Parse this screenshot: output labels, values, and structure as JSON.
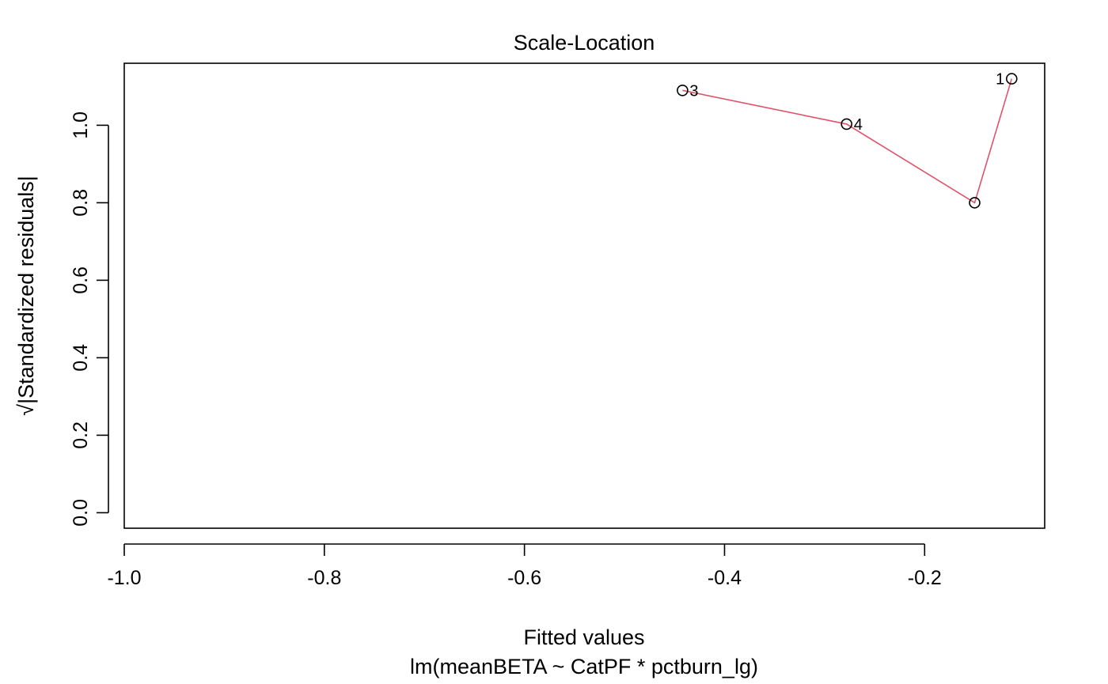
{
  "chart_data": {
    "type": "scatter",
    "title": "Scale-Location",
    "xlabel": "Fitted values",
    "subtitle": "lm(meanBETA ~ CatPF * pctburn_lg)",
    "ylabel": "√|Standardized residuals|",
    "xlim": [
      -1.0,
      -0.08
    ],
    "ylim": [
      -0.04,
      1.16
    ],
    "x_ticks": [
      -1.0,
      -0.8,
      -0.6,
      -0.4,
      -0.2
    ],
    "x_tick_labels": [
      "-1.0",
      "-0.8",
      "-0.6",
      "-0.4",
      "-0.2"
    ],
    "y_ticks": [
      0.0,
      0.2,
      0.4,
      0.6,
      0.8,
      1.0
    ],
    "y_tick_labels": [
      "0.0",
      "0.2",
      "0.4",
      "0.6",
      "0.8",
      "1.0"
    ],
    "grid": false,
    "points": [
      {
        "label": "3",
        "x": -0.442,
        "y": 1.09,
        "label_side": "right"
      },
      {
        "label": "4",
        "x": -0.278,
        "y": 1.003,
        "label_side": "right"
      },
      {
        "label": "",
        "x": -0.15,
        "y": 0.8,
        "label_side": "right"
      },
      {
        "label": "1",
        "x": -0.113,
        "y": 1.12,
        "label_side": "left"
      }
    ],
    "smoother": {
      "color": "#DF536B",
      "x": [
        -0.442,
        -0.278,
        -0.15,
        -0.113
      ],
      "y": [
        1.09,
        1.003,
        0.8,
        1.12
      ]
    }
  }
}
